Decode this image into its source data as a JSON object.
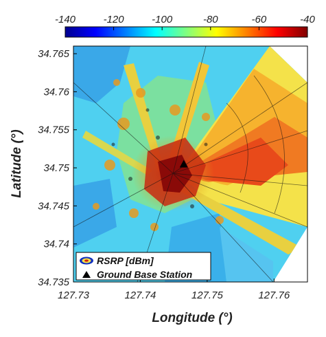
{
  "chart_data": {
    "type": "heatmap",
    "title": "",
    "xlabel": "Longitude (°)",
    "ylabel": "Latitude (°)",
    "xlim": [
      127.73,
      127.765
    ],
    "ylim": [
      34.735,
      34.766
    ],
    "x_ticks": [
      "127.73",
      "127.74",
      "127.75",
      "127.76"
    ],
    "y_ticks": [
      "34.735",
      "34.74",
      "34.745",
      "34.75",
      "34.755",
      "34.76",
      "34.765"
    ],
    "colorbar": {
      "colormap": "jet",
      "range": [
        -140,
        -40
      ],
      "ticks": [
        "-140",
        "-120",
        "-100",
        "-80",
        "-60",
        "-40"
      ]
    },
    "base_station": {
      "x": 127.7465,
      "y": 34.7505
    },
    "legend": {
      "position": "bottom-left",
      "entries": [
        "RSRP [dBm]",
        "Ground Base Station"
      ]
    },
    "value_label": "RSRP [dBm]"
  }
}
